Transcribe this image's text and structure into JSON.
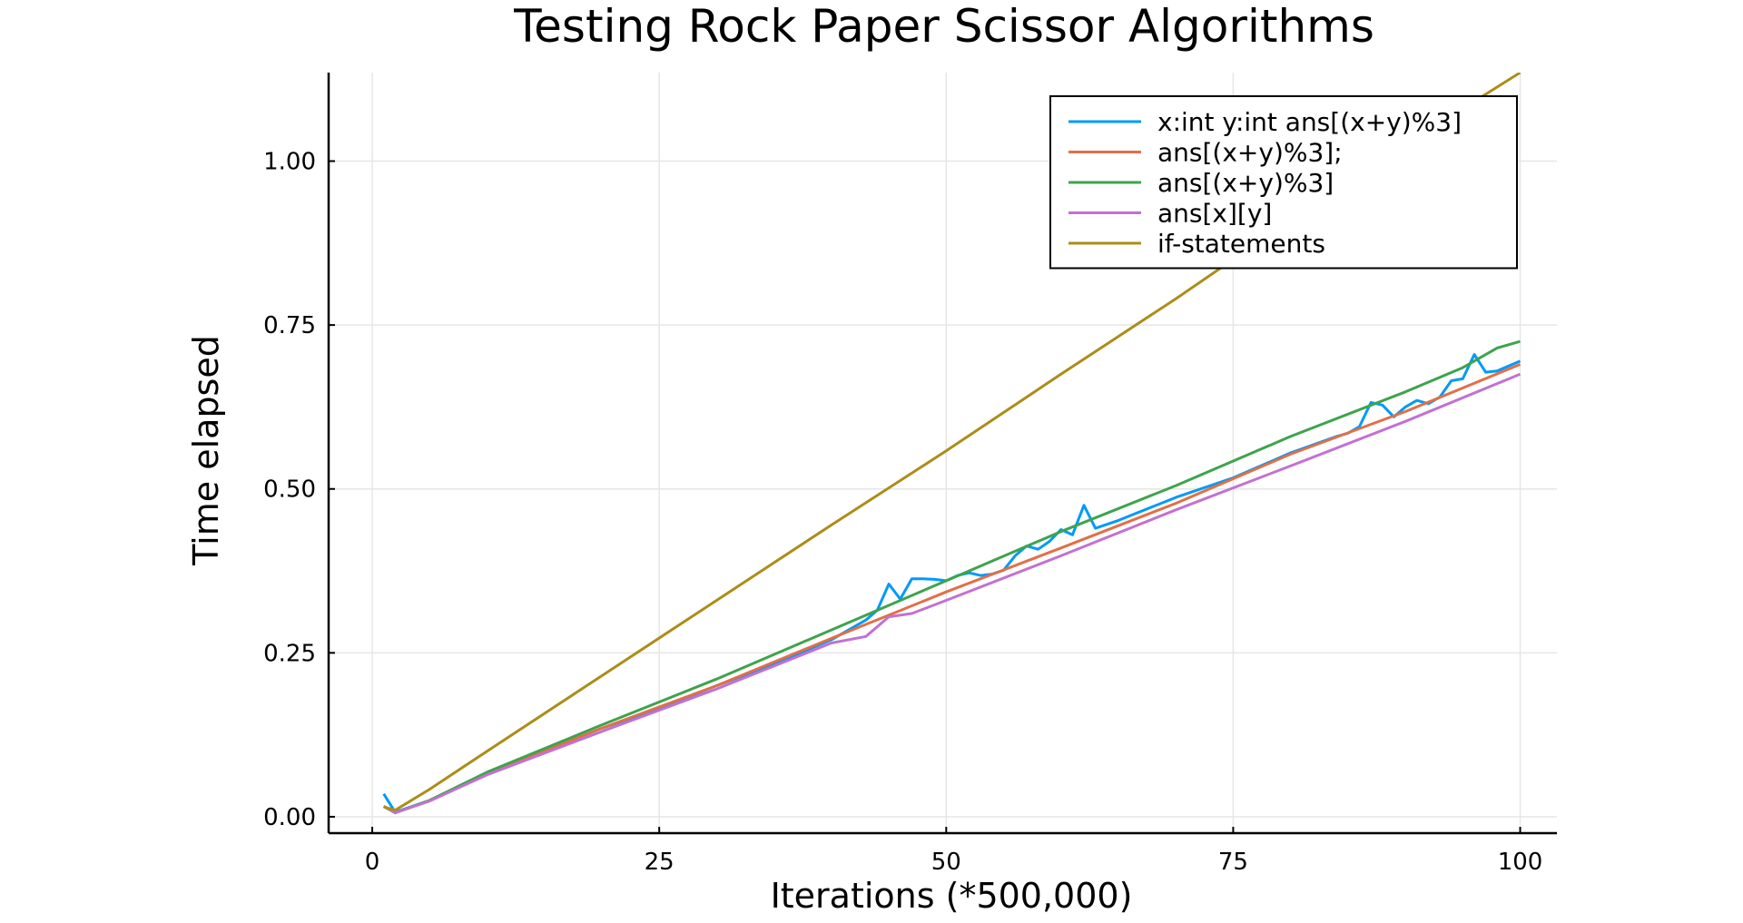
{
  "chart_data": {
    "type": "line",
    "title": "Testing Rock Paper Scissor Algorithms",
    "xlabel": "Iterations (*500,000)",
    "ylabel": "Time elapsed",
    "xlim": [
      -3.8,
      103.2
    ],
    "ylim": [
      -0.025,
      1.135
    ],
    "xticks": [
      0,
      25,
      50,
      75,
      100
    ],
    "yticks": [
      0.0,
      0.25,
      0.5,
      0.75,
      1.0
    ],
    "xtick_labels": [
      "0",
      "25",
      "50",
      "75",
      "100"
    ],
    "ytick_labels": [
      "0.00",
      "0.25",
      "0.50",
      "0.75",
      "1.00"
    ],
    "grid": true,
    "legend_position": "top-right",
    "series": [
      {
        "name": "x:int y:int ans[(x+y)%3]",
        "color": "#009AFA",
        "x": [
          1,
          2,
          5,
          10,
          15,
          20,
          25,
          30,
          35,
          40,
          43,
          44,
          45,
          46,
          47,
          48,
          49,
          50,
          51,
          52,
          53,
          54,
          55,
          56,
          57,
          58,
          59,
          60,
          61,
          62,
          63,
          65,
          70,
          75,
          80,
          84,
          85,
          86,
          87,
          88,
          89,
          90,
          91,
          92,
          93,
          94,
          95,
          96,
          97,
          98,
          100
        ],
        "y": [
          0.035,
          0.007,
          0.025,
          0.067,
          0.1,
          0.135,
          0.165,
          0.2,
          0.233,
          0.27,
          0.3,
          0.315,
          0.355,
          0.332,
          0.363,
          0.363,
          0.362,
          0.36,
          0.368,
          0.372,
          0.368,
          0.37,
          0.376,
          0.398,
          0.413,
          0.408,
          0.42,
          0.438,
          0.43,
          0.475,
          0.44,
          0.452,
          0.487,
          0.517,
          0.555,
          0.58,
          0.585,
          0.595,
          0.632,
          0.628,
          0.61,
          0.625,
          0.635,
          0.63,
          0.64,
          0.665,
          0.668,
          0.705,
          0.678,
          0.68,
          0.695
        ]
      },
      {
        "name": "ans[(x+y)%3];",
        "color": "#E26F46",
        "x": [
          1,
          2,
          5,
          10,
          20,
          30,
          40,
          50,
          60,
          70,
          80,
          90,
          100
        ],
        "y": [
          0.016,
          0.006,
          0.025,
          0.066,
          0.135,
          0.2,
          0.272,
          0.343,
          0.41,
          0.478,
          0.553,
          0.618,
          0.69
        ]
      },
      {
        "name": "ans[(x+y)%3]",
        "color": "#3DA44D",
        "x": [
          1,
          2,
          5,
          10,
          20,
          30,
          40,
          50,
          60,
          70,
          80,
          90,
          95,
          98,
          100
        ],
        "y": [
          0.016,
          0.006,
          0.025,
          0.068,
          0.14,
          0.21,
          0.285,
          0.36,
          0.435,
          0.505,
          0.58,
          0.648,
          0.685,
          0.715,
          0.725
        ]
      },
      {
        "name": "ans[x][y]",
        "color": "#C271D2",
        "x": [
          1,
          2,
          5,
          10,
          20,
          30,
          40,
          43,
          45,
          47,
          50,
          60,
          70,
          80,
          90,
          100
        ],
        "y": [
          0.016,
          0.006,
          0.024,
          0.064,
          0.13,
          0.195,
          0.265,
          0.275,
          0.305,
          0.31,
          0.33,
          0.398,
          0.468,
          0.535,
          0.603,
          0.675
        ]
      },
      {
        "name": "if-statements",
        "color": "#AC8D18",
        "x": [
          1,
          2,
          5,
          10,
          20,
          30,
          40,
          50,
          60,
          70,
          80,
          90,
          100
        ],
        "y": [
          0.015,
          0.01,
          0.042,
          0.1,
          0.215,
          0.33,
          0.445,
          0.558,
          0.675,
          0.79,
          0.91,
          1.025,
          1.135
        ]
      }
    ]
  }
}
